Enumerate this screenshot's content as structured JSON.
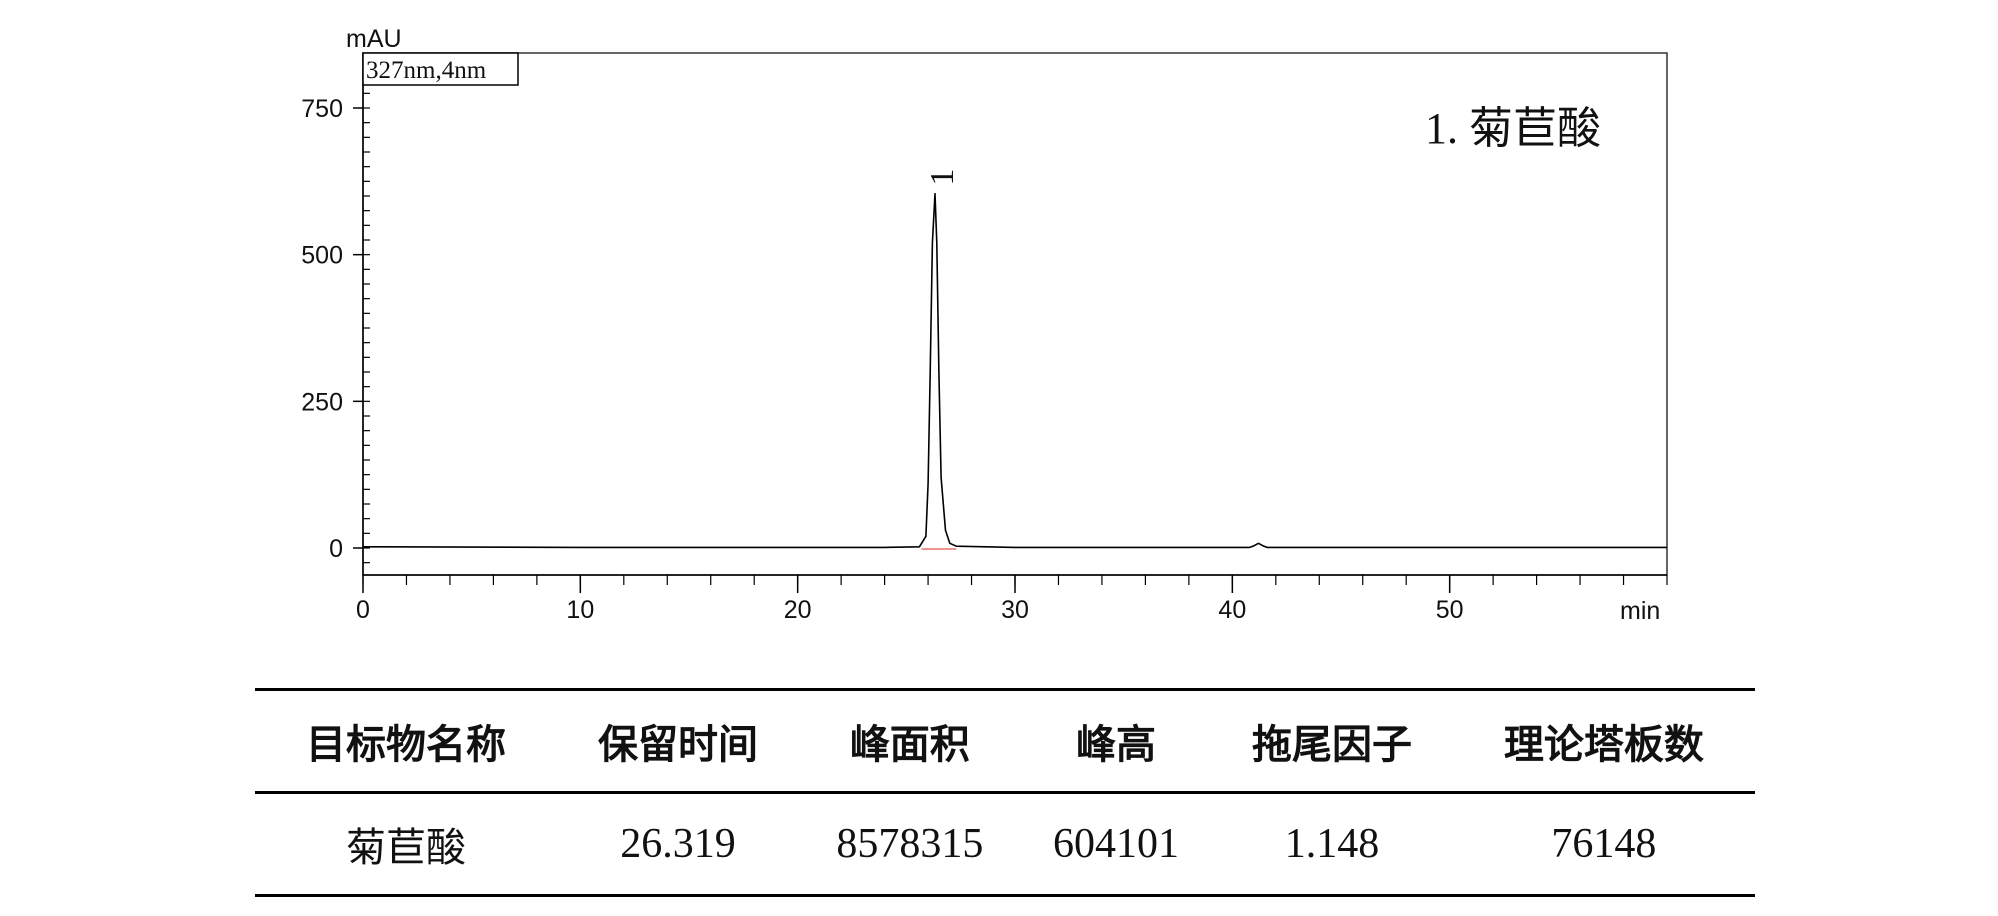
{
  "chart_data": {
    "type": "line",
    "ylabel": "mAU",
    "xlabel": "min",
    "xlim": [
      0,
      60
    ],
    "ylim": [
      -40,
      840
    ],
    "xticks": [
      0,
      10,
      20,
      30,
      40,
      50
    ],
    "yticks": [
      0,
      250,
      500,
      750
    ],
    "detection_box": "327nm,4nm",
    "legend_text": "1.  菊苣酸",
    "peaks": [
      {
        "label": "1",
        "x": 26.319,
        "y": 604
      },
      {
        "label": "",
        "x": 41.2,
        "y": 8
      }
    ],
    "series": [
      {
        "x": [
          0,
          10,
          20,
          24,
          25.6,
          25.9,
          26.0,
          26.1,
          26.2,
          26.319,
          26.4,
          26.5,
          26.6,
          26.8,
          27.0,
          27.3,
          30,
          35,
          40.8,
          41.0,
          41.2,
          41.4,
          41.6,
          45,
          50,
          55,
          60
        ],
        "y": [
          2,
          1,
          1,
          1,
          2,
          20,
          110,
          300,
          520,
          604,
          520,
          300,
          120,
          30,
          8,
          3,
          1,
          1,
          1,
          4,
          8,
          4,
          1,
          1,
          1,
          1,
          1
        ]
      }
    ]
  },
  "table": {
    "headers": [
      "目标物名称",
      "保留时间",
      "峰面积",
      "峰高",
      "拖尾因子",
      "理论塔板数"
    ],
    "rows": [
      [
        "菊苣酸",
        "26.319",
        "8578315",
        "604101",
        "1.148",
        "76148"
      ]
    ]
  }
}
